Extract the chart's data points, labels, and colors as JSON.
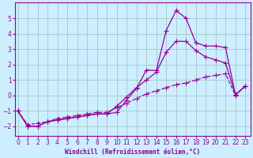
{
  "bg_color": "#cceeff",
  "grid_color": "#aacccc",
  "line_color": "#990099",
  "xlabel": "Windchill (Refroidissement éolien,°C)",
  "xlabel_color": "#880088",
  "xticks": [
    0,
    1,
    2,
    3,
    4,
    5,
    6,
    7,
    8,
    9,
    10,
    11,
    12,
    13,
    14,
    15,
    16,
    17,
    18,
    19,
    20,
    21,
    22,
    23
  ],
  "yticks": [
    -2,
    -1,
    0,
    1,
    2,
    3,
    4,
    5
  ],
  "xlim": [
    -0.3,
    23.5
  ],
  "ylim": [
    -2.6,
    6.0
  ],
  "line1_x": [
    0,
    1,
    2,
    3,
    4,
    5,
    6,
    7,
    8,
    9,
    10,
    11,
    12,
    13,
    14,
    15,
    16,
    17,
    18,
    19,
    20,
    21,
    22,
    23
  ],
  "line1_y": [
    -1.0,
    -2.0,
    -2.0,
    -1.7,
    -1.6,
    -1.5,
    -1.4,
    -1.3,
    -1.2,
    -1.2,
    -1.1,
    -0.3,
    0.45,
    1.65,
    1.6,
    4.2,
    5.5,
    5.0,
    3.4,
    3.2,
    3.2,
    3.1,
    0.05,
    0.6
  ],
  "line2_x": [
    0,
    1,
    2,
    3,
    4,
    5,
    6,
    7,
    8,
    9,
    10,
    11,
    12,
    13,
    14,
    15,
    16,
    17,
    18,
    19,
    20,
    21,
    22,
    23
  ],
  "line2_y": [
    -1.0,
    -2.0,
    -2.0,
    -1.7,
    -1.6,
    -1.5,
    -1.4,
    -1.3,
    -1.2,
    -1.2,
    -0.7,
    -0.1,
    0.5,
    1.0,
    1.5,
    2.8,
    3.5,
    3.5,
    2.9,
    2.5,
    2.3,
    2.1,
    0.05,
    0.6
  ],
  "line3_x": [
    0,
    1,
    2,
    3,
    4,
    5,
    6,
    7,
    8,
    9,
    10,
    11,
    12,
    13,
    14,
    15,
    16,
    17,
    18,
    19,
    20,
    21,
    22,
    23
  ],
  "line3_y": [
    -1.0,
    -1.9,
    -1.8,
    -1.7,
    -1.5,
    -1.4,
    -1.3,
    -1.2,
    -1.1,
    -1.1,
    -0.8,
    -0.5,
    -0.2,
    0.1,
    0.3,
    0.5,
    0.7,
    0.8,
    1.0,
    1.2,
    1.3,
    1.4,
    0.0,
    0.6
  ]
}
